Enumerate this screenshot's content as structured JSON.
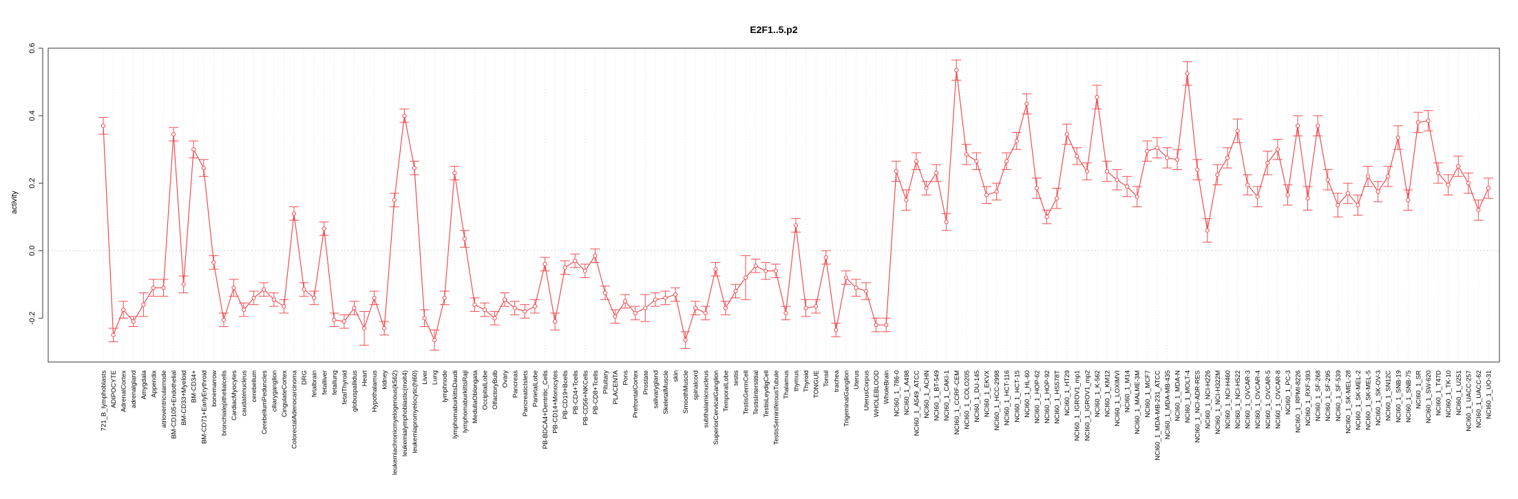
{
  "chart_data": {
    "type": "line",
    "title": "E2F1..5.p2",
    "xlabel": "",
    "ylabel": "activity",
    "ylim": [
      -0.33,
      0.6
    ],
    "yticks": [
      -0.2,
      0.0,
      0.2,
      0.4,
      0.6
    ],
    "ytick_labels": [
      "-0.2",
      "0.0",
      "0.2",
      "0.4",
      "0.6"
    ],
    "grid": true,
    "legend": "none",
    "error_bars": true,
    "categories": [
      "721_B_lymphoblasts",
      "ADIPOCYTE",
      "AdrenalCortex",
      "adrenalgland",
      "Amygdala",
      "Appendix",
      "atrioventricularnode",
      "BM-CD105+Endothelial",
      "BM-CD33+Myeloid",
      "BM-CD34+",
      "BM-CD71+EarlyErythroid",
      "bonemarrow",
      "bronchialepithelialcells",
      "CardiacMyocytes",
      "caudatenucleus",
      "cerebellum",
      "CerebellumPeduncles",
      "ciliaryganglion",
      "CingulateCortex",
      "ColorectalAdenocarcinoma",
      "DRG",
      "fetalbrain",
      "fetalliver",
      "fetallung",
      "fetalThyroid",
      "globuspallidus",
      "Heart",
      "Hypothalamus",
      "kidney",
      "leukemiachronicmyelogenous(k562)",
      "leukemialymphoblastic(molt4)",
      "leukemiapromyelocytic(hl60)",
      "Liver",
      "Lung",
      "lymphnode",
      "lymphomaburkittsDaudi",
      "lymphomaburkittsRaji",
      "MedullaOblongata",
      "OccipitalLobe",
      "OlfactoryBulb",
      "Ovary",
      "Pancreas",
      "PancreaticIslets",
      "ParietalLobe",
      "PB-BDCA4+Dentritic_Cells",
      "PB-CD14+Monocytes",
      "PB-CD19+Bcells",
      "PB-CD4+Tcells",
      "PB-CD56+NKCells",
      "PB-CD8+Tcells",
      "Pituitary",
      "PLACENTA",
      "Pons",
      "PrefrontalCortex",
      "Prostate",
      "salivarygland",
      "SkeletalMuscle",
      "skin",
      "SmoothMuscle",
      "spinalcord",
      "subthalamicnucleus",
      "SuperiorCervicalGanglion",
      "TemporalLobe",
      "testis",
      "TestisGermCell",
      "TestisInterstitial",
      "TestisLeydigCell",
      "TestisSeminiferousTubule",
      "Thalamus",
      "thymus",
      "Thyroid",
      "TONGUE",
      "Tonsil",
      "trachea",
      "TrigeminalGanglion",
      "Uterus",
      "UterusCorpus",
      "WHOLEBLOOD",
      "WholeBrain",
      "NCI60_1_786-0",
      "NCI60_1_A498",
      "NCI60_1_A549_ATCC",
      "NCI60_1_ACHN",
      "NCI60_1_BT-549",
      "NCI60_1_CAKI-1",
      "NCI60_1_CCRF-CEM",
      "NCI60_1_COLO205",
      "NCI60_1_DU-145",
      "NCI60_1_EKVX",
      "NCI60_1_HCC-2998",
      "NCI60_1_HCT-116",
      "NCI60_1_HCT-15",
      "NCI60_1_HL-60",
      "NCI60_1_HOP-62",
      "NCI60_1_HOP-92",
      "NCI60_1_HS578T",
      "NCI60_1_HT29",
      "NCI60_1_IGROV1_mp1",
      "NCI60_1_IGROV1_mp2",
      "NCI60_1_K-562",
      "NCI60_1_KM12",
      "NCI60_1_LOXIMVI",
      "NCI60_1_M14",
      "NCI60_1_MALME-3M",
      "NCI60_1_MCF7",
      "NCI60_1_MDA-MB-231_ATCC",
      "NCI60_1_MDA-MB-435",
      "NCI60_1_MDA-N",
      "NCI60_1_MOLT-4",
      "NCI60_1_NCI-ADR-RES",
      "NCI60_1_NCI-H226",
      "NCI60_1_NCI-H322M",
      "NCI60_1_NCI-H460",
      "NCI60_1_NCI-H522",
      "NCI60_1_OVCAR-3",
      "NCI60_1_OVCAR-4",
      "NCI60_1_OVCAR-5",
      "NCI60_1_OVCAR-8",
      "NCI60_1_PC-3",
      "NCI60_1_RPMI-8226",
      "NCI60_1_RXF-393",
      "NCI60_1_SF-268",
      "NCI60_1_SF-295",
      "NCI60_1_SF-539",
      "NCI60_1_SK-MEL-28",
      "NCI60_1_SK-MEL-2",
      "NCI60_1_SK-MEL-5",
      "NCI60_1_SK-OV-3",
      "NCI60_1_SN12C",
      "NCI60_1_SNB-19",
      "NCI60_1_SNB-75",
      "NCI60_1_SR",
      "NCI60_1_SW-620",
      "NCI60_1_T47D",
      "NCI60_1_TK-10",
      "NCI60_1_U251",
      "NCI60_1_UACC-257",
      "NCI60_1_UACC-62",
      "NCI60_1_UO-31"
    ],
    "values": [
      0.37,
      -0.25,
      -0.175,
      -0.21,
      -0.16,
      -0.11,
      -0.11,
      0.345,
      -0.1,
      0.3,
      0.245,
      -0.035,
      -0.205,
      -0.11,
      -0.175,
      -0.14,
      -0.115,
      -0.145,
      -0.165,
      0.11,
      -0.115,
      -0.14,
      0.065,
      -0.205,
      -0.21,
      -0.17,
      -0.23,
      -0.14,
      -0.23,
      0.15,
      0.4,
      0.245,
      -0.2,
      -0.265,
      -0.14,
      0.23,
      0.035,
      -0.16,
      -0.175,
      -0.2,
      -0.145,
      -0.17,
      -0.18,
      -0.165,
      -0.04,
      -0.21,
      -0.05,
      -0.03,
      -0.06,
      -0.015,
      -0.125,
      -0.195,
      -0.15,
      -0.185,
      -0.17,
      -0.145,
      -0.14,
      -0.13,
      -0.265,
      -0.17,
      -0.185,
      -0.055,
      -0.17,
      -0.12,
      -0.08,
      -0.045,
      -0.06,
      -0.06,
      -0.185,
      0.075,
      -0.17,
      -0.165,
      -0.02,
      -0.235,
      -0.08,
      -0.11,
      -0.12,
      -0.22,
      -0.22,
      0.235,
      0.15,
      0.265,
      0.185,
      0.23,
      0.085,
      0.535,
      0.285,
      0.265,
      0.165,
      0.175,
      0.265,
      0.325,
      0.435,
      0.185,
      0.1,
      0.155,
      0.345,
      0.28,
      0.235,
      0.455,
      0.235,
      0.21,
      0.19,
      0.16,
      0.295,
      0.305,
      0.275,
      0.27,
      0.525,
      0.24,
      0.06,
      0.225,
      0.275,
      0.355,
      0.195,
      0.16,
      0.26,
      0.3,
      0.165,
      0.37,
      0.155,
      0.37,
      0.21,
      0.135,
      0.17,
      0.135,
      0.22,
      0.175,
      0.22,
      0.335,
      0.15,
      0.38,
      0.385,
      0.23,
      0.195,
      0.25,
      0.2,
      0.12,
      0.185
    ],
    "errors": [
      0.025,
      0.02,
      0.025,
      0.015,
      0.035,
      0.025,
      0.025,
      0.02,
      0.025,
      0.025,
      0.025,
      0.02,
      0.02,
      0.025,
      0.02,
      0.02,
      0.02,
      0.02,
      0.02,
      0.02,
      0.02,
      0.02,
      0.02,
      0.02,
      0.02,
      0.02,
      0.05,
      0.02,
      0.02,
      0.02,
      0.02,
      0.02,
      0.025,
      0.03,
      0.02,
      0.02,
      0.025,
      0.02,
      0.02,
      0.02,
      0.02,
      0.02,
      0.02,
      0.02,
      0.02,
      0.025,
      0.02,
      0.02,
      0.02,
      0.02,
      0.02,
      0.02,
      0.02,
      0.02,
      0.04,
      0.02,
      0.02,
      0.02,
      0.025,
      0.02,
      0.02,
      0.02,
      0.02,
      0.02,
      0.065,
      0.02,
      0.025,
      0.02,
      0.02,
      0.02,
      0.025,
      0.02,
      0.02,
      0.02,
      0.02,
      0.025,
      0.025,
      0.02,
      0.02,
      0.03,
      0.03,
      0.025,
      0.02,
      0.025,
      0.025,
      0.03,
      0.03,
      0.025,
      0.025,
      0.025,
      0.025,
      0.025,
      0.03,
      0.03,
      0.02,
      0.03,
      0.03,
      0.025,
      0.025,
      0.035,
      0.03,
      0.03,
      0.03,
      0.03,
      0.03,
      0.03,
      0.03,
      0.03,
      0.035,
      0.03,
      0.035,
      0.03,
      0.03,
      0.035,
      0.03,
      0.03,
      0.035,
      0.03,
      0.03,
      0.03,
      0.035,
      0.03,
      0.03,
      0.035,
      0.03,
      0.03,
      0.03,
      0.03,
      0.03,
      0.035,
      0.03,
      0.03,
      0.03,
      0.03,
      0.03,
      0.03,
      0.03,
      0.03,
      0.03
    ]
  },
  "colors": {
    "series": "#f04a4f",
    "grid": "#cccccc",
    "axis": "#333333",
    "background": "#ffffff"
  }
}
